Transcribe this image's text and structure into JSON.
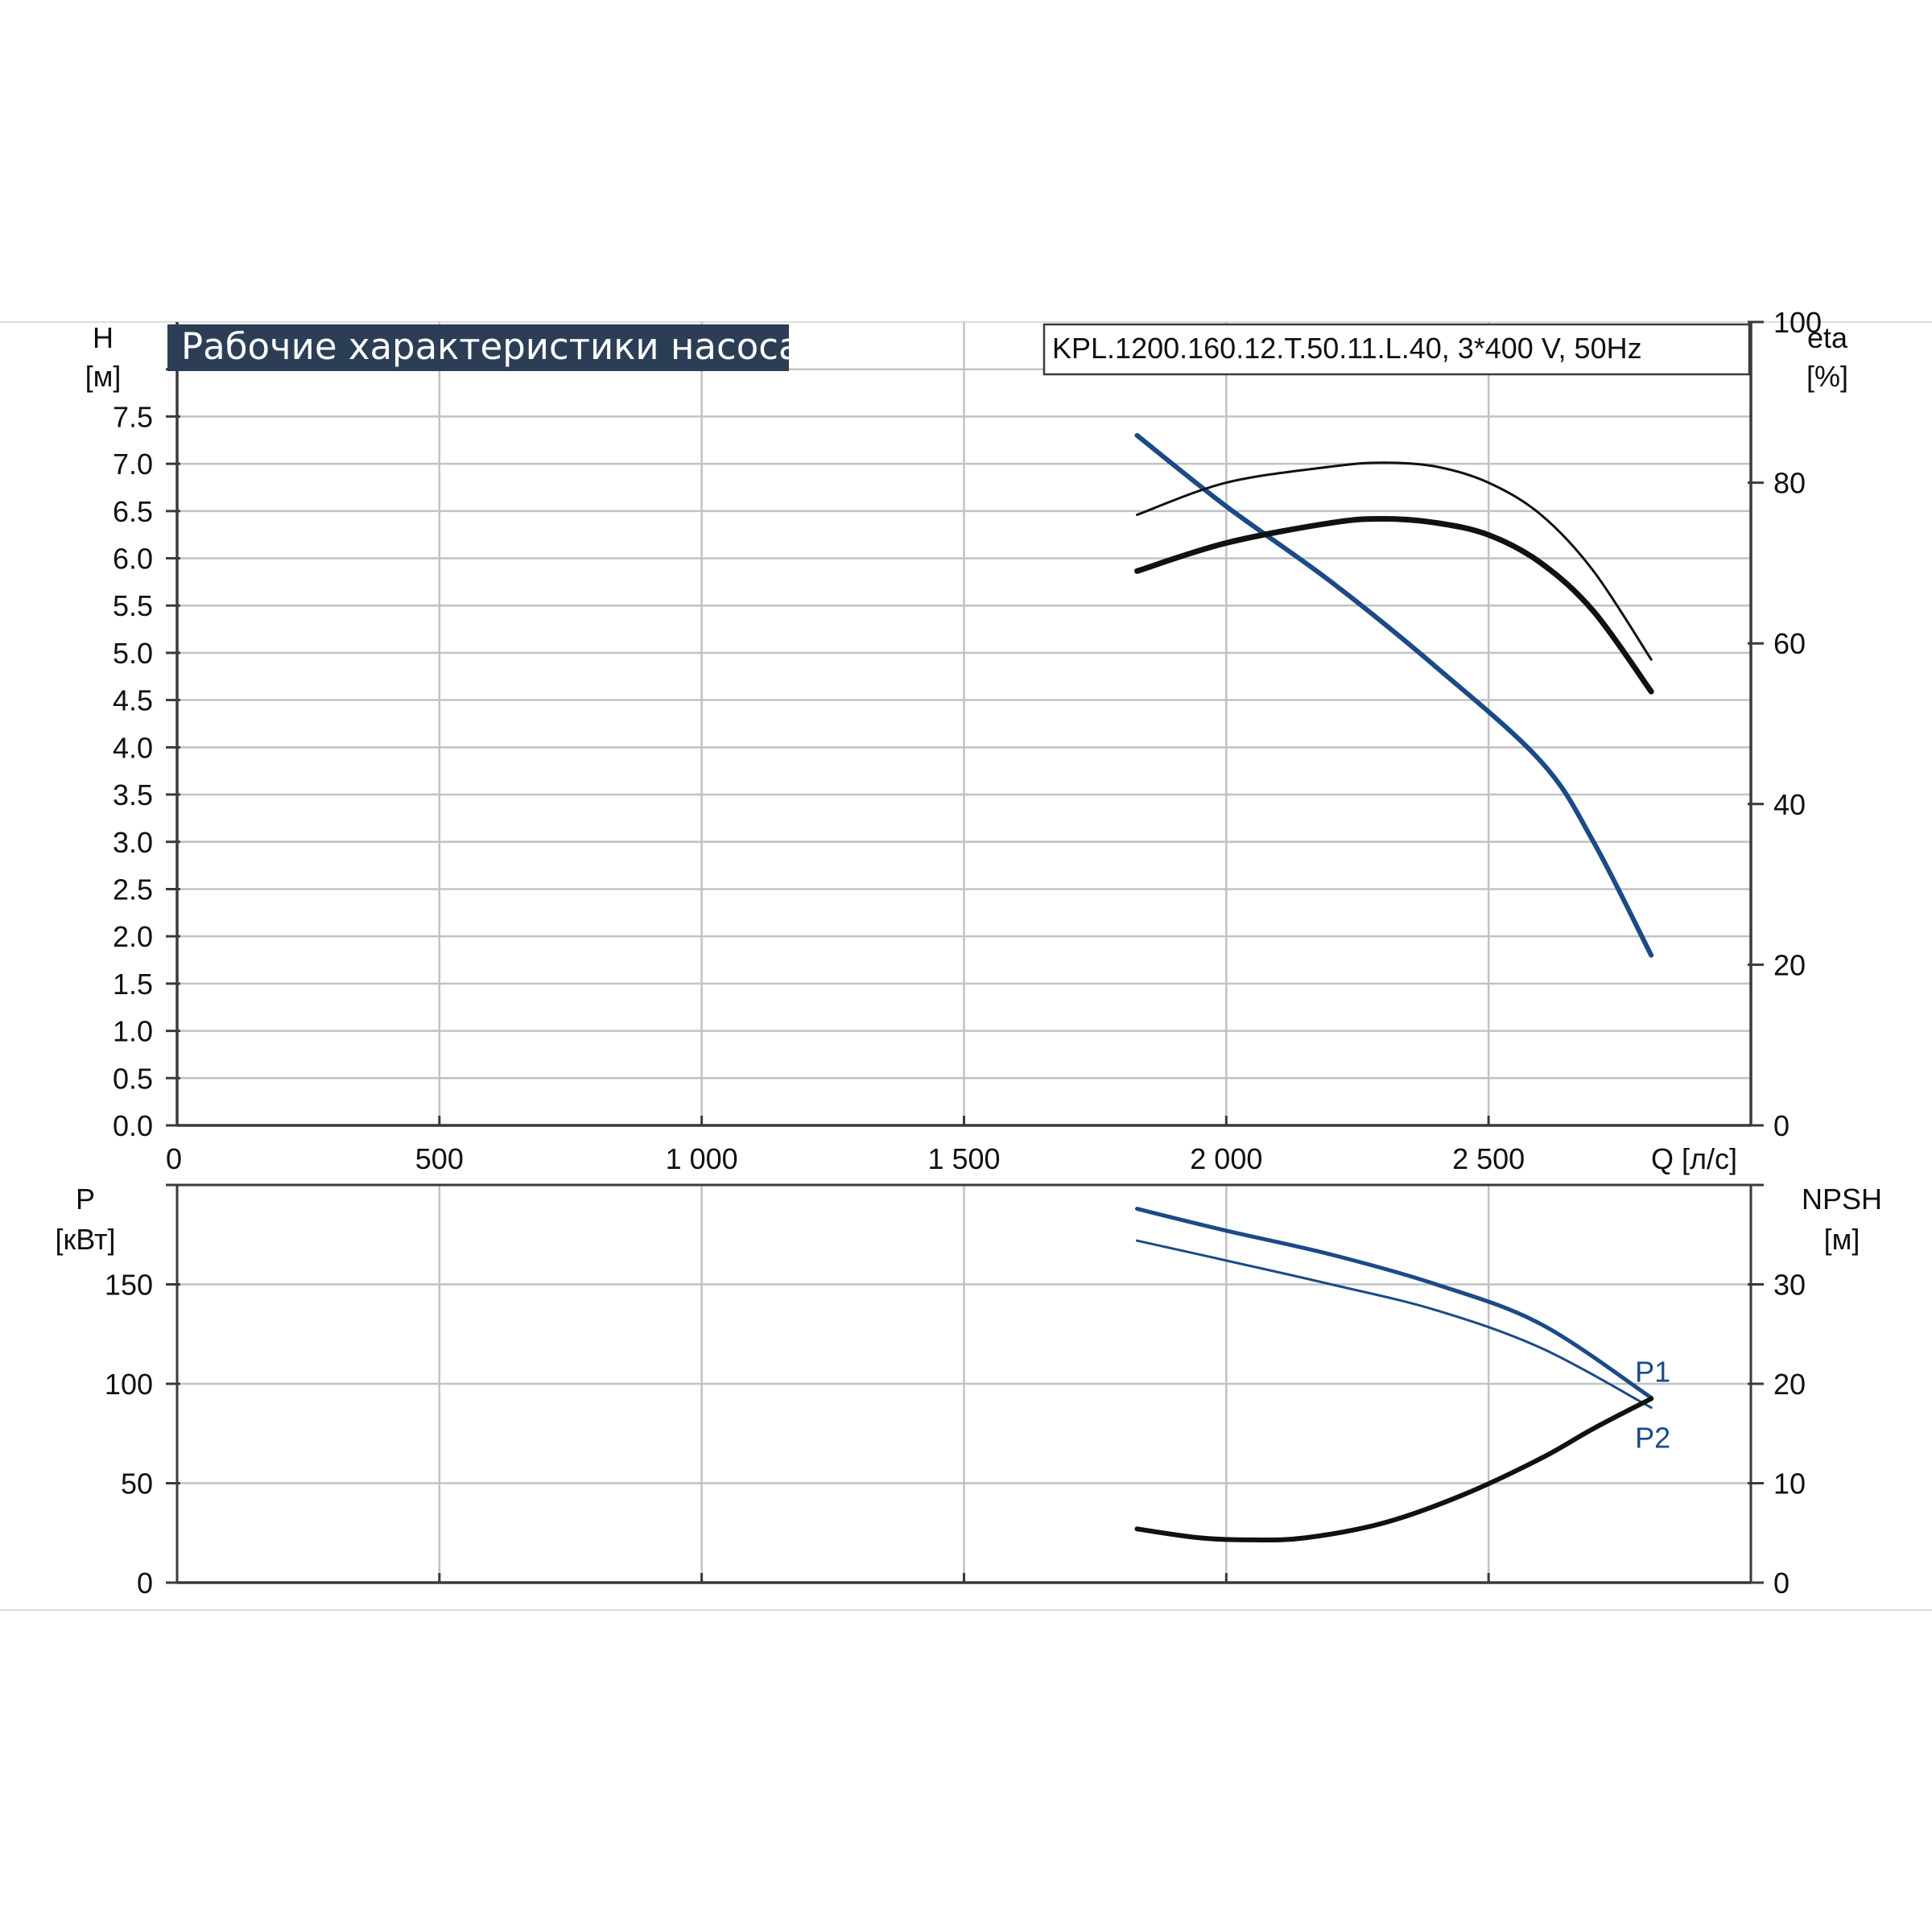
{
  "header": {
    "title": "Рабочие характеристики насоса",
    "model": "KPL.1200.160.12.T.50.11.L.40, 3*400 V, 50Hz"
  },
  "colors": {
    "title_bg": "#2c3e56",
    "blue": "#1b4b87",
    "black": "#111111",
    "grid": "#c2c2c2"
  },
  "x_axis": {
    "label": "Q [л/с]",
    "min": 0,
    "max": 3000,
    "ticks": [
      0,
      500,
      1000,
      1500,
      2000,
      2500,
      3000
    ],
    "tick_labels": [
      "0",
      "500",
      "1 000",
      "1 500",
      "2 000",
      "2 500",
      ""
    ]
  },
  "chart_data": [
    {
      "type": "line",
      "panel": "top",
      "left_axis": {
        "label": "H",
        "unit": "[м]",
        "min": 0,
        "max": 8.5,
        "ticks": [
          0,
          0.5,
          1,
          1.5,
          2,
          2.5,
          3,
          3.5,
          4,
          4.5,
          5,
          5.5,
          6,
          6.5,
          7,
          7.5,
          8
        ],
        "tick_labels": [
          "0.0",
          "0.5",
          "1.0",
          "1.5",
          "2.0",
          "2.5",
          "3.0",
          "3.5",
          "4.0",
          "4.5",
          "5.0",
          "5.5",
          "6.0",
          "6.5",
          "7.0",
          "7.5",
          ""
        ]
      },
      "right_axis": {
        "label": "eta",
        "unit": "[%]",
        "min": 0,
        "max": 100,
        "ticks": [
          0,
          20,
          40,
          60,
          80,
          100
        ],
        "tick_labels": [
          "0",
          "20",
          "40",
          "60",
          "80",
          "100"
        ]
      },
      "grid": true,
      "series": [
        {
          "axis": "left",
          "color": "blue",
          "width": 6,
          "x": [
            1830,
            2000,
            2200,
            2400,
            2600,
            2700,
            2810
          ],
          "y": [
            7.3,
            6.55,
            5.75,
            4.85,
            3.85,
            3.0,
            1.8
          ]
        },
        {
          "axis": "right",
          "color": "black",
          "width": 3,
          "x": [
            1830,
            2000,
            2200,
            2300,
            2400,
            2500,
            2600,
            2700,
            2810
          ],
          "y": [
            76,
            80,
            82,
            82.5,
            82,
            80,
            76,
            69,
            58
          ]
        },
        {
          "axis": "right",
          "color": "black",
          "width": 7,
          "x": [
            1830,
            2000,
            2200,
            2300,
            2400,
            2500,
            2600,
            2700,
            2810
          ],
          "y": [
            69,
            72.5,
            75,
            75.5,
            75,
            73.5,
            70,
            64,
            54
          ]
        }
      ]
    },
    {
      "type": "line",
      "panel": "bottom",
      "left_axis": {
        "label": "P",
        "unit": "[кВт]",
        "min": 0,
        "max": 200,
        "ticks": [
          0,
          50,
          100,
          150,
          200
        ],
        "tick_labels": [
          "0",
          "50",
          "100",
          "150",
          ""
        ]
      },
      "right_axis": {
        "label": "NPSH",
        "unit": "[м]",
        "min": 0,
        "max": 40,
        "ticks": [
          0,
          10,
          20,
          30,
          40
        ],
        "tick_labels": [
          "0",
          "10",
          "20",
          "30",
          ""
        ]
      },
      "grid": true,
      "series": [
        {
          "name": "P1",
          "axis": "left",
          "color": "blue",
          "width": 5,
          "x": [
            1830,
            2000,
            2200,
            2400,
            2600,
            2810
          ],
          "y": [
            188,
            177,
            165,
            150,
            130,
            93
          ]
        },
        {
          "name": "P2",
          "axis": "left",
          "color": "blue",
          "width": 3,
          "x": [
            1830,
            2000,
            2200,
            2400,
            2600,
            2810
          ],
          "y": [
            172,
            162,
            150,
            137,
            118,
            88
          ]
        },
        {
          "axis": "right",
          "color": "black",
          "width": 6,
          "x": [
            1830,
            1950,
            2050,
            2150,
            2300,
            2450,
            2600,
            2700,
            2810
          ],
          "y": [
            5.4,
            4.5,
            4.3,
            4.5,
            6.0,
            8.8,
            12.5,
            15.5,
            18.5
          ]
        }
      ]
    }
  ]
}
